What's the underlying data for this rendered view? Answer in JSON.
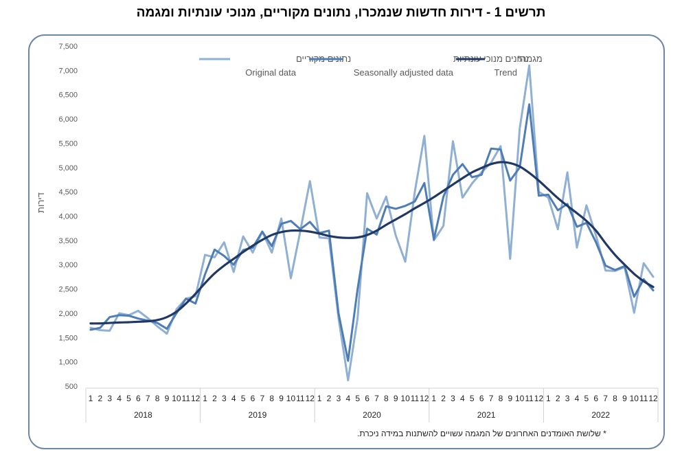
{
  "title": "תרשים 1 - דירות חדשות שנמכרו, נתונים מקוריים, מנוכי עונתיות ומגמה",
  "footnote": "* שלושת האומדנים האחרונים של המגמה עשויים להשתנות במידה ניכרת.",
  "chart_data": {
    "type": "line",
    "ylabel": "דירות",
    "ylim": [
      500,
      7500
    ],
    "yticks": [
      "500",
      "1,000",
      "1,500",
      "2,000",
      "2,500",
      "3,000",
      "3,500",
      "4,000",
      "4,500",
      "5,000",
      "5,500",
      "6,000",
      "6,500",
      "7,000",
      "7,500"
    ],
    "ytick_values": [
      500,
      1000,
      1500,
      2000,
      2500,
      3000,
      3500,
      4000,
      4500,
      5000,
      5500,
      6000,
      6500,
      7000,
      7500
    ],
    "month_labels": [
      "1",
      "2",
      "3",
      "4",
      "5",
      "6",
      "7",
      "8",
      "9",
      "10",
      "11",
      "12"
    ],
    "years": [
      "2018",
      "2019",
      "2020",
      "2021",
      "2022"
    ],
    "grid": false,
    "legend_position": "top",
    "series": [
      {
        "name_he": "נתונים מקוריים",
        "name_en": "Original data",
        "color": "#8fb0d4",
        "values": [
          1700,
          1650,
          1640,
          2000,
          1960,
          2050,
          1900,
          1730,
          1580,
          2080,
          2300,
          2350,
          3200,
          3150,
          3460,
          2850,
          3580,
          3250,
          3680,
          3250,
          3950,
          2720,
          3700,
          4720,
          3560,
          3540,
          1900,
          620,
          1900,
          4470,
          3950,
          4400,
          3600,
          3060,
          4500,
          5650,
          3500,
          3800,
          5540,
          4380,
          4670,
          4900,
          5100,
          5440,
          3120,
          5800,
          7100,
          4500,
          4380,
          3730,
          4900,
          3350,
          4220,
          3600,
          2880,
          2870,
          2950,
          2010,
          3030,
          2750
        ]
      },
      {
        "name_he": "נתונים מנוכי עונתיות",
        "name_en": "Seasonally adjusted data",
        "color": "#4e7db6",
        "values": [
          1660,
          1700,
          1920,
          1960,
          1950,
          1890,
          1850,
          1800,
          1680,
          2000,
          2300,
          2200,
          2800,
          3310,
          3180,
          3000,
          3300,
          3350,
          3680,
          3380,
          3840,
          3900,
          3730,
          3880,
          3650,
          3700,
          2000,
          1020,
          2500,
          3740,
          3620,
          4200,
          4150,
          4210,
          4300,
          4680,
          3520,
          4400,
          4850,
          5070,
          4800,
          4850,
          5390,
          5370,
          4730,
          5000,
          6300,
          4420,
          4440,
          4120,
          4250,
          3780,
          3860,
          3460,
          2980,
          2890,
          2970,
          2340,
          2700,
          2470
        ]
      },
      {
        "name_he": "מגמה*",
        "name_en": "Trend",
        "color": "#203864",
        "values": [
          1790,
          1790,
          1800,
          1810,
          1815,
          1825,
          1835,
          1860,
          1920,
          2030,
          2200,
          2400,
          2620,
          2820,
          2980,
          3120,
          3260,
          3390,
          3510,
          3610,
          3670,
          3700,
          3700,
          3680,
          3640,
          3590,
          3560,
          3550,
          3560,
          3610,
          3700,
          3820,
          3930,
          4040,
          4160,
          4270,
          4390,
          4520,
          4650,
          4780,
          4900,
          4990,
          5070,
          5110,
          5090,
          5020,
          4890,
          4730,
          4550,
          4370,
          4210,
          4060,
          3900,
          3700,
          3440,
          3200,
          3000,
          2810,
          2660,
          2540
        ]
      }
    ]
  }
}
